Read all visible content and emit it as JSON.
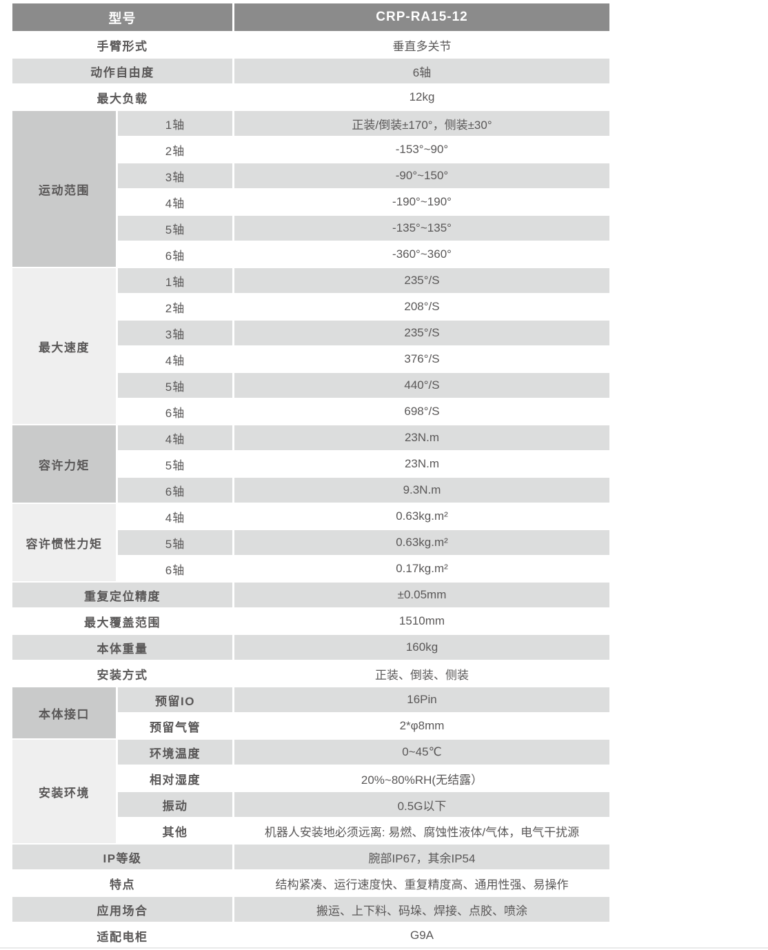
{
  "palette": {
    "header_bg": "#8b8b8b",
    "header_text": "#ffffff",
    "row_gray": "#dcdddd",
    "row_white": "#ffffff",
    "group_dark": "#c9caca",
    "group_light": "#efefef",
    "text": "#595757"
  },
  "header": {
    "label": "型号",
    "value": "CRP-RA15-12"
  },
  "sections": [
    {
      "type": "simple",
      "label": "手臂形式",
      "value": "垂直多关节"
    },
    {
      "type": "simple",
      "label": "动作自由度",
      "value": "6轴"
    },
    {
      "type": "simple",
      "label": "最大负载",
      "value": "12kg"
    },
    {
      "type": "group",
      "label": "运动范围",
      "tone": "dark",
      "bold_sub": false,
      "rows": [
        {
          "sub": "1轴",
          "value": "正装/倒装±170°，侧装±30°"
        },
        {
          "sub": "2轴",
          "value": "-153°~90°"
        },
        {
          "sub": "3轴",
          "value": "-90°~150°"
        },
        {
          "sub": "4轴",
          "value": "-190°~190°"
        },
        {
          "sub": "5轴",
          "value": "-135°~135°"
        },
        {
          "sub": "6轴",
          "value": "-360°~360°"
        }
      ]
    },
    {
      "type": "group",
      "label": "最大速度",
      "tone": "light",
      "bold_sub": false,
      "rows": [
        {
          "sub": "1轴",
          "value": "235°/S"
        },
        {
          "sub": "2轴",
          "value": "208°/S"
        },
        {
          "sub": "3轴",
          "value": "235°/S"
        },
        {
          "sub": "4轴",
          "value": "376°/S"
        },
        {
          "sub": "5轴",
          "value": "440°/S"
        },
        {
          "sub": "6轴",
          "value": "698°/S"
        }
      ]
    },
    {
      "type": "group",
      "label": "容许力矩",
      "tone": "dark",
      "bold_sub": false,
      "rows": [
        {
          "sub": "4轴",
          "value": "23N.m"
        },
        {
          "sub": "5轴",
          "value": "23N.m"
        },
        {
          "sub": "6轴",
          "value": "9.3N.m"
        }
      ]
    },
    {
      "type": "group",
      "label": "容许惯性力矩",
      "tone": "light",
      "bold_sub": false,
      "rows": [
        {
          "sub": "4轴",
          "value": "0.63kg.m²"
        },
        {
          "sub": "5轴",
          "value": "0.63kg.m²"
        },
        {
          "sub": "6轴",
          "value": "0.17kg.m²"
        }
      ]
    },
    {
      "type": "simple",
      "label": "重复定位精度",
      "value": "±0.05mm"
    },
    {
      "type": "simple",
      "label": "最大覆盖范围",
      "value": "1510mm"
    },
    {
      "type": "simple",
      "label": "本体重量",
      "value": "160kg"
    },
    {
      "type": "simple",
      "label": "安装方式",
      "value": "正装、倒装、侧装"
    },
    {
      "type": "group",
      "label": "本体接口",
      "tone": "dark",
      "bold_sub": true,
      "rows": [
        {
          "sub": "预留IO",
          "value": "16Pin"
        },
        {
          "sub": "预留气管",
          "value": "2*φ8mm"
        }
      ]
    },
    {
      "type": "group",
      "label": "安装环境",
      "tone": "light",
      "bold_sub": true,
      "rows": [
        {
          "sub": "环境温度",
          "value": "0~45℃"
        },
        {
          "sub": "相对湿度",
          "value": "20%~80%RH(无结露）"
        },
        {
          "sub": "振动",
          "value": "0.5G以下"
        },
        {
          "sub": "其他",
          "value": "机器人安装地必须远离: 易燃、腐蚀性液体/气体，电气干扰源"
        }
      ]
    },
    {
      "type": "simple",
      "label": "IP等级",
      "value": "腕部IP67，其余IP54"
    },
    {
      "type": "simple",
      "label": "特点",
      "value": "结构紧凑、运行速度快、重复精度高、通用性强、易操作"
    },
    {
      "type": "simple",
      "label": "应用场合",
      "value": "搬运、上下料、码垛、焊接、点胶、喷涂"
    },
    {
      "type": "simple",
      "label": "适配电柜",
      "value": "G9A"
    }
  ]
}
